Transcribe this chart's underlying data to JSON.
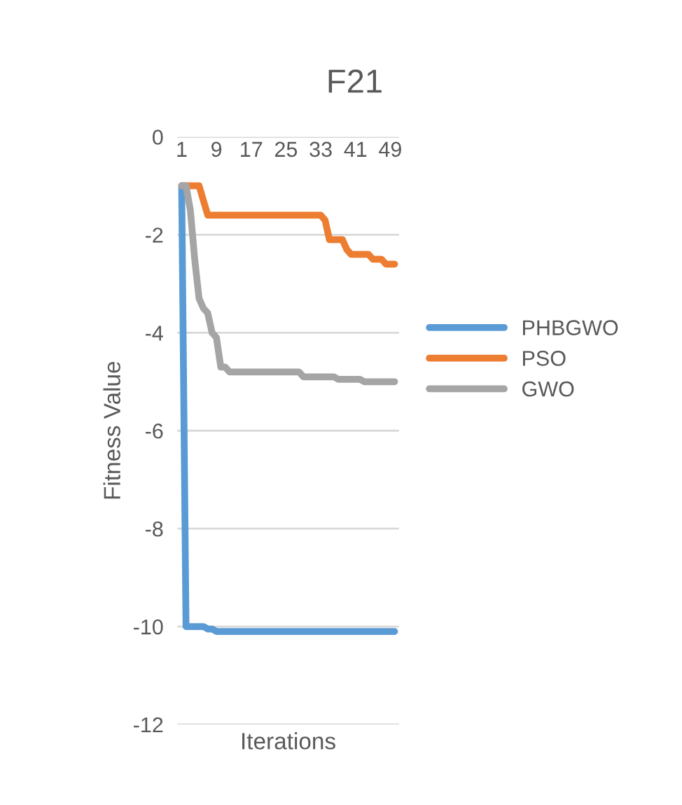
{
  "chart_data": {
    "type": "line",
    "title": "F21",
    "xlabel": "Iterations",
    "ylabel": "Fitness Value",
    "categories": [
      "1",
      null,
      null,
      null,
      null,
      null,
      null,
      null,
      "9",
      null,
      null,
      null,
      null,
      null,
      null,
      null,
      "17",
      null,
      null,
      null,
      null,
      null,
      null,
      null,
      "25",
      null,
      null,
      null,
      null,
      null,
      null,
      null,
      "33",
      null,
      null,
      null,
      null,
      null,
      null,
      null,
      "41",
      null,
      null,
      null,
      null,
      null,
      null,
      null,
      "49",
      null
    ],
    "ylim": [
      -12,
      0
    ],
    "yticks": [
      -12,
      -10,
      -8,
      -6,
      -4,
      -2,
      0
    ],
    "grid": "y",
    "legend": "right",
    "marker": "none",
    "line_style": "solid",
    "series": [
      {
        "name": "PHBGWO",
        "color": "#5b9bd5",
        "values": [
          -1,
          -10,
          -10,
          -10,
          -10,
          -10,
          -10.05,
          -10.05,
          -10.1,
          -10.1,
          -10.1,
          -10.1,
          -10.1,
          -10.1,
          -10.1,
          -10.1,
          -10.1,
          -10.1,
          -10.1,
          -10.1,
          -10.1,
          -10.1,
          -10.1,
          -10.1,
          -10.1,
          -10.1,
          -10.1,
          -10.1,
          -10.1,
          -10.1,
          -10.1,
          -10.1,
          -10.1,
          -10.1,
          -10.1,
          -10.1,
          -10.1,
          -10.1,
          -10.1,
          -10.1,
          -10.1,
          -10.1,
          -10.1,
          -10.1,
          -10.1,
          -10.1,
          -10.1,
          -10.1,
          -10.1,
          -10.1
        ]
      },
      {
        "name": "PSO",
        "color": "#ed7d31",
        "values": [
          -1,
          -1,
          -1,
          -1,
          -1,
          -1.3,
          -1.6,
          -1.6,
          -1.6,
          -1.6,
          -1.6,
          -1.6,
          -1.6,
          -1.6,
          -1.6,
          -1.6,
          -1.6,
          -1.6,
          -1.6,
          -1.6,
          -1.6,
          -1.6,
          -1.6,
          -1.6,
          -1.6,
          -1.6,
          -1.6,
          -1.6,
          -1.6,
          -1.6,
          -1.6,
          -1.6,
          -1.6,
          -1.7,
          -2.1,
          -2.1,
          -2.1,
          -2.1,
          -2.3,
          -2.4,
          -2.4,
          -2.4,
          -2.4,
          -2.4,
          -2.5,
          -2.5,
          -2.5,
          -2.6,
          -2.6,
          -2.6
        ]
      },
      {
        "name": "GWO",
        "color": "#a5a5a5",
        "values": [
          -1,
          -1,
          -1.5,
          -2.5,
          -3.3,
          -3.5,
          -3.6,
          -4.0,
          -4.1,
          -4.7,
          -4.7,
          -4.8,
          -4.8,
          -4.8,
          -4.8,
          -4.8,
          -4.8,
          -4.8,
          -4.8,
          -4.8,
          -4.8,
          -4.8,
          -4.8,
          -4.8,
          -4.8,
          -4.8,
          -4.8,
          -4.8,
          -4.9,
          -4.9,
          -4.9,
          -4.9,
          -4.9,
          -4.9,
          -4.9,
          -4.9,
          -4.95,
          -4.95,
          -4.95,
          -4.95,
          -4.95,
          -4.95,
          -5.0,
          -5.0,
          -5.0,
          -5.0,
          -5.0,
          -5.0,
          -5.0,
          -5.0
        ]
      }
    ]
  }
}
